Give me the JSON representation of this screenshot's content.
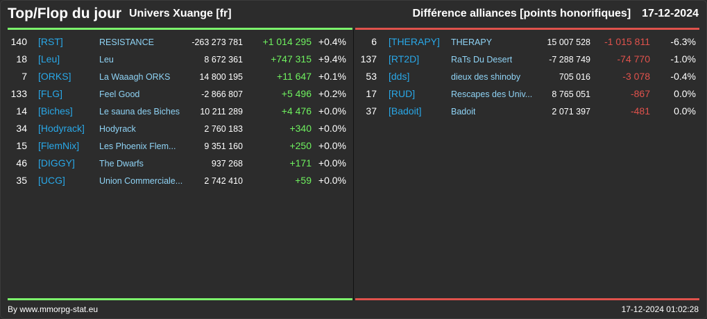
{
  "header": {
    "title": "Top/Flop du jour",
    "universe": "Univers Xuange [fr]",
    "subtitle": "Différence alliances [points honorifiques]",
    "date": "17-12-2024"
  },
  "colors": {
    "top_accent": "#7cf36c",
    "flop_accent": "#e0524c",
    "tag_color": "#29a8e8",
    "background": "#2c2c2c"
  },
  "top": [
    {
      "rank": "140",
      "tag": "[RST]",
      "name": "RESISTANCE",
      "points": "-263 273 781",
      "diff": "+1 014 295",
      "pct": "+0.4%"
    },
    {
      "rank": "18",
      "tag": "[Leu]",
      "name": "Leu",
      "points": "8 672 361",
      "diff": "+747 315",
      "pct": "+9.4%"
    },
    {
      "rank": "7",
      "tag": "[ORKS]",
      "name": "La Waaagh ORKS",
      "points": "14 800 195",
      "diff": "+11 647",
      "pct": "+0.1%"
    },
    {
      "rank": "133",
      "tag": "[FLG]",
      "name": "Feel Good",
      "points": "-2 866 807",
      "diff": "+5 496",
      "pct": "+0.2%"
    },
    {
      "rank": "14",
      "tag": "[Biches]",
      "name": "Le sauna des Biches",
      "points": "10 211 289",
      "diff": "+4 476",
      "pct": "+0.0%"
    },
    {
      "rank": "34",
      "tag": "[Hodyrack]",
      "name": "Hodyrack",
      "points": "2 760 183",
      "diff": "+340",
      "pct": "+0.0%"
    },
    {
      "rank": "15",
      "tag": "[FlemNix]",
      "name": "Les Phoenix Flem...",
      "points": "9 351 160",
      "diff": "+250",
      "pct": "+0.0%"
    },
    {
      "rank": "46",
      "tag": "[DIGGY]",
      "name": "The Dwarfs",
      "points": "937 268",
      "diff": "+171",
      "pct": "+0.0%"
    },
    {
      "rank": "35",
      "tag": "[UCG]",
      "name": "Union Commerciale...",
      "points": "2 742 410",
      "diff": "+59",
      "pct": "+0.0%"
    }
  ],
  "flop": [
    {
      "rank": "6",
      "tag": "[THERAPY]",
      "name": "THERAPY",
      "points": "15 007 528",
      "diff": "-1 015 811",
      "pct": "-6.3%"
    },
    {
      "rank": "137",
      "tag": "[RT2D]",
      "name": "RaTs Du Desert",
      "points": "-7 288 749",
      "diff": "-74 770",
      "pct": "-1.0%"
    },
    {
      "rank": "53",
      "tag": "[dds]",
      "name": "dieux des shinoby",
      "points": "705 016",
      "diff": "-3 078",
      "pct": "-0.4%"
    },
    {
      "rank": "17",
      "tag": "[RUD]",
      "name": "Rescapes des Univ...",
      "points": "8 765 051",
      "diff": "-867",
      "pct": "0.0%"
    },
    {
      "rank": "37",
      "tag": "[Badoit]",
      "name": "Badoit",
      "points": "2 071 397",
      "diff": "-481",
      "pct": "0.0%"
    }
  ],
  "footer": {
    "credit": "By www.mmorpg-stat.eu",
    "timestamp": "17-12-2024 01:02:28"
  }
}
